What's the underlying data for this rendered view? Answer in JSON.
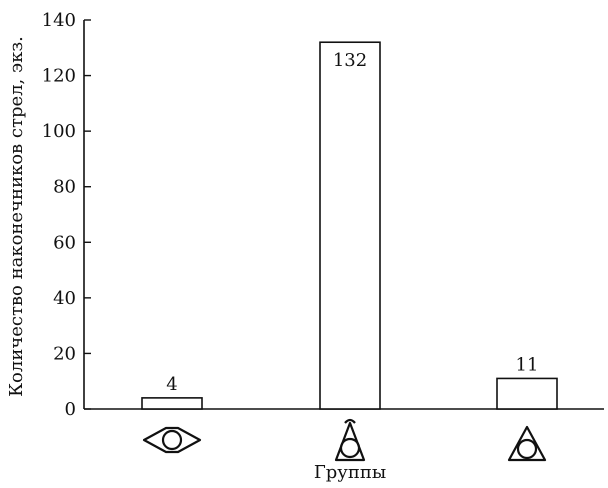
{
  "chart_data": {
    "type": "bar",
    "categories": [
      "eye-shaped arrowhead",
      "triangle with circle and hook",
      "triangle with circle"
    ],
    "values": [
      4,
      132,
      11
    ],
    "data_labels": [
      "4",
      "132",
      "11"
    ],
    "title": "",
    "xlabel": "Группы",
    "ylabel": "Количество наконечников стрел, экз.",
    "ylim": [
      0,
      140
    ],
    "yticks": [
      0,
      20,
      40,
      60,
      80,
      100,
      120,
      140
    ],
    "grid": false,
    "legend": "none",
    "colors": {
      "bar_fill": "#ffffff",
      "stroke": "#111111"
    },
    "category_icons": [
      "eye-lens-icon",
      "triangle-circle-hook-icon",
      "triangle-circle-icon"
    ]
  }
}
